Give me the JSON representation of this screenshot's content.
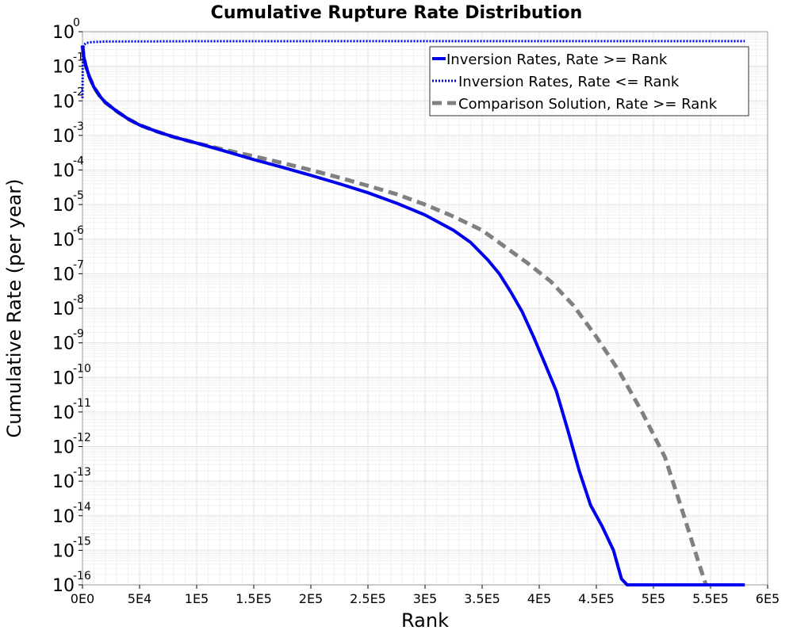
{
  "chart_data": {
    "type": "line",
    "title": "Cumulative Rupture Rate Distribution",
    "xlabel": "Rank",
    "ylabel": "Cumulative Rate (per year)",
    "xscale": "linear",
    "yscale": "log",
    "xlim": [
      0,
      600000
    ],
    "ylim": [
      1e-16,
      1
    ],
    "grid": true,
    "legend_position": "top-right",
    "x_ticks": [
      {
        "value": 0,
        "label": "0E0"
      },
      {
        "value": 50000,
        "label": "5E4"
      },
      {
        "value": 100000,
        "label": "1E5"
      },
      {
        "value": 150000,
        "label": "1.5E5"
      },
      {
        "value": 200000,
        "label": "2E5"
      },
      {
        "value": 250000,
        "label": "2.5E5"
      },
      {
        "value": 300000,
        "label": "3E5"
      },
      {
        "value": 350000,
        "label": "3.5E5"
      },
      {
        "value": 400000,
        "label": "4E5"
      },
      {
        "value": 450000,
        "label": "4.5E5"
      },
      {
        "value": 500000,
        "label": "5E5"
      },
      {
        "value": 550000,
        "label": "5.5E5"
      },
      {
        "value": 600000,
        "label": "6E5"
      }
    ],
    "y_ticks": [
      {
        "base": "10",
        "exp": "0"
      },
      {
        "base": "10",
        "exp": "-1"
      },
      {
        "base": "10",
        "exp": "-2"
      },
      {
        "base": "10",
        "exp": "-3"
      },
      {
        "base": "10",
        "exp": "-4"
      },
      {
        "base": "10",
        "exp": "-5"
      },
      {
        "base": "10",
        "exp": "-6"
      },
      {
        "base": "10",
        "exp": "-7"
      },
      {
        "base": "10",
        "exp": "-8"
      },
      {
        "base": "10",
        "exp": "-9"
      },
      {
        "base": "10",
        "exp": "-10"
      },
      {
        "base": "10",
        "exp": "-11"
      },
      {
        "base": "10",
        "exp": "-12"
      },
      {
        "base": "10",
        "exp": "-13"
      },
      {
        "base": "10",
        "exp": "-14"
      },
      {
        "base": "10",
        "exp": "-15"
      },
      {
        "base": "10",
        "exp": "-16"
      }
    ],
    "series": [
      {
        "name": "Inversion Rates, Rate >= Rank",
        "color": "#0000ee",
        "style": "solid",
        "points": [
          [
            0,
            0.4
          ],
          [
            1000,
            0.2
          ],
          [
            3000,
            0.1
          ],
          [
            6000,
            0.05
          ],
          [
            10000,
            0.025
          ],
          [
            15000,
            0.014
          ],
          [
            20000,
            0.009
          ],
          [
            30000,
            0.005
          ],
          [
            40000,
            0.003
          ],
          [
            50000,
            0.002
          ],
          [
            65000,
            0.0013
          ],
          [
            80000,
            0.0009
          ],
          [
            100000,
            0.0006
          ],
          [
            125000,
            0.00035
          ],
          [
            150000,
            0.0002
          ],
          [
            175000,
            0.00012
          ],
          [
            200000,
            7e-05
          ],
          [
            225000,
            4e-05
          ],
          [
            250000,
            2.2e-05
          ],
          [
            275000,
            1.1e-05
          ],
          [
            300000,
            5e-06
          ],
          [
            325000,
            1.8e-06
          ],
          [
            340000,
            8e-07
          ],
          [
            355000,
            2.5e-07
          ],
          [
            365000,
            1e-07
          ],
          [
            375000,
            3e-08
          ],
          [
            385000,
            8e-09
          ],
          [
            395000,
            1.5e-09
          ],
          [
            405000,
            2.5e-10
          ],
          [
            415000,
            4e-11
          ],
          [
            425000,
            3e-12
          ],
          [
            435000,
            2e-13
          ],
          [
            445000,
            2e-14
          ],
          [
            455000,
            5e-15
          ],
          [
            465000,
            1e-15
          ],
          [
            472000,
            1.5e-16
          ],
          [
            477000,
            1e-16
          ],
          [
            580000,
            1e-16
          ]
        ]
      },
      {
        "name": "Inversion Rates, Rate <= Rank",
        "color": "#0000ee",
        "style": "dotted",
        "points": [
          [
            0,
            0.012
          ],
          [
            300,
            0.2
          ],
          [
            1000,
            0.4
          ],
          [
            3000,
            0.47
          ],
          [
            8000,
            0.5
          ],
          [
            20000,
            0.52
          ],
          [
            100000,
            0.53
          ],
          [
            300000,
            0.535
          ],
          [
            580000,
            0.535
          ]
        ]
      },
      {
        "name": "Comparison Solution, Rate >= Rank",
        "color": "#808080",
        "style": "dashed",
        "points": [
          [
            0,
            0.4
          ],
          [
            1000,
            0.2
          ],
          [
            3000,
            0.1
          ],
          [
            6000,
            0.05
          ],
          [
            10000,
            0.025
          ],
          [
            15000,
            0.014
          ],
          [
            20000,
            0.009
          ],
          [
            30000,
            0.005
          ],
          [
            40000,
            0.003
          ],
          [
            50000,
            0.002
          ],
          [
            65000,
            0.0013
          ],
          [
            80000,
            0.0009
          ],
          [
            100000,
            0.0006
          ],
          [
            125000,
            0.00038
          ],
          [
            150000,
            0.00025
          ],
          [
            175000,
            0.00016
          ],
          [
            200000,
            0.0001
          ],
          [
            225000,
            6e-05
          ],
          [
            250000,
            3.5e-05
          ],
          [
            275000,
            2e-05
          ],
          [
            300000,
            1e-05
          ],
          [
            325000,
            4.5e-06
          ],
          [
            350000,
            1.8e-06
          ],
          [
            370000,
            6e-07
          ],
          [
            390000,
            2e-07
          ],
          [
            410000,
            6e-08
          ],
          [
            430000,
            1.2e-08
          ],
          [
            450000,
            1.5e-09
          ],
          [
            470000,
            1.5e-10
          ],
          [
            490000,
            1e-11
          ],
          [
            510000,
            5e-13
          ],
          [
            525000,
            1.5e-14
          ],
          [
            540000,
            4e-16
          ],
          [
            546000,
            1e-16
          ]
        ]
      }
    ]
  }
}
